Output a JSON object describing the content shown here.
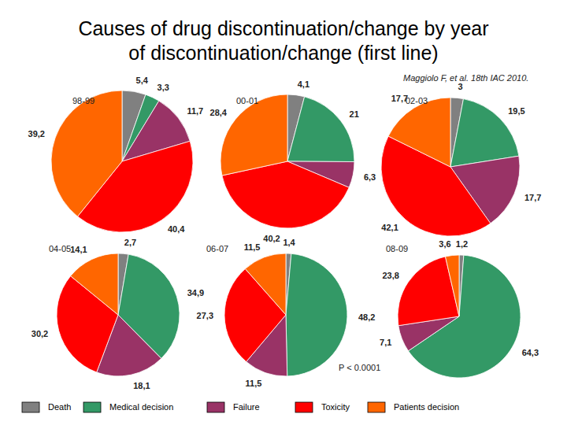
{
  "title": "Causes of drug discontinuation/change by year of discontinuation/change (first line)",
  "source": "Maggiolo F, et al. 18th IAC 2010.",
  "annotation": "P < 0.0001",
  "chart_data": [
    {
      "type": "pie",
      "title": "98-99",
      "categories": [
        "Death",
        "Medical decision",
        "Failure",
        "Toxicity",
        "Patients decision"
      ],
      "values": [
        5.4,
        3.3,
        11.7,
        40.4,
        39.2
      ],
      "value_labels": [
        "5,4",
        "3,3",
        "11,7",
        "40,4",
        "39,2"
      ],
      "colors": [
        "#808080",
        "#339966",
        "#993366",
        "#ff0000",
        "#ff6600"
      ],
      "data_labels": true
    },
    {
      "type": "pie",
      "title": "00-01",
      "categories": [
        "Death",
        "Medical decision",
        "Failure",
        "Toxicity",
        "Patients decision"
      ],
      "values": [
        4.1,
        21,
        6.3,
        40.2,
        28.4
      ],
      "value_labels": [
        "4,1",
        "21",
        "6,3",
        "40,2",
        "28,4"
      ],
      "colors": [
        "#808080",
        "#339966",
        "#993366",
        "#ff0000",
        "#ff6600"
      ],
      "data_labels": true
    },
    {
      "type": "pie",
      "title": "02-03",
      "categories": [
        "Death",
        "Medical decision",
        "Failure",
        "Toxicity",
        "Patients decision"
      ],
      "values": [
        3,
        19.5,
        17.7,
        42.1,
        17.7
      ],
      "value_labels": [
        "3",
        "19,5",
        "17,7",
        "42,1",
        "17,7"
      ],
      "colors": [
        "#808080",
        "#339966",
        "#993366",
        "#ff0000",
        "#ff6600"
      ],
      "data_labels": true
    },
    {
      "type": "pie",
      "title": "04-05",
      "categories": [
        "Death",
        "Medical decision",
        "Failure",
        "Toxicity",
        "Patients decision"
      ],
      "values": [
        2.7,
        34.9,
        18.1,
        30.2,
        14.1
      ],
      "value_labels": [
        "2,7",
        "34,9",
        "18,1",
        "30,2",
        "14,1"
      ],
      "colors": [
        "#808080",
        "#339966",
        "#993366",
        "#ff0000",
        "#ff6600"
      ],
      "data_labels": true
    },
    {
      "type": "pie",
      "title": "06-07",
      "categories": [
        "Death",
        "Medical decision",
        "Failure",
        "Toxicity",
        "Patients decision"
      ],
      "values": [
        1.4,
        48.2,
        11.5,
        27.3,
        11.5
      ],
      "value_labels": [
        "1,4",
        "48,2",
        "11,5",
        "27,3",
        "11,5"
      ],
      "colors": [
        "#808080",
        "#339966",
        "#993366",
        "#ff0000",
        "#ff6600"
      ],
      "data_labels": true
    },
    {
      "type": "pie",
      "title": "08-09",
      "categories": [
        "Death",
        "Medical decision",
        "Failure",
        "Toxicity",
        "Patients decision"
      ],
      "values": [
        1.2,
        64.3,
        7.1,
        23.8,
        3.6
      ],
      "value_labels": [
        "1,2",
        "64,3",
        "7,1",
        "23,8",
        "3,6"
      ],
      "colors": [
        "#808080",
        "#339966",
        "#993366",
        "#ff0000",
        "#ff6600"
      ],
      "data_labels": true
    }
  ]
}
